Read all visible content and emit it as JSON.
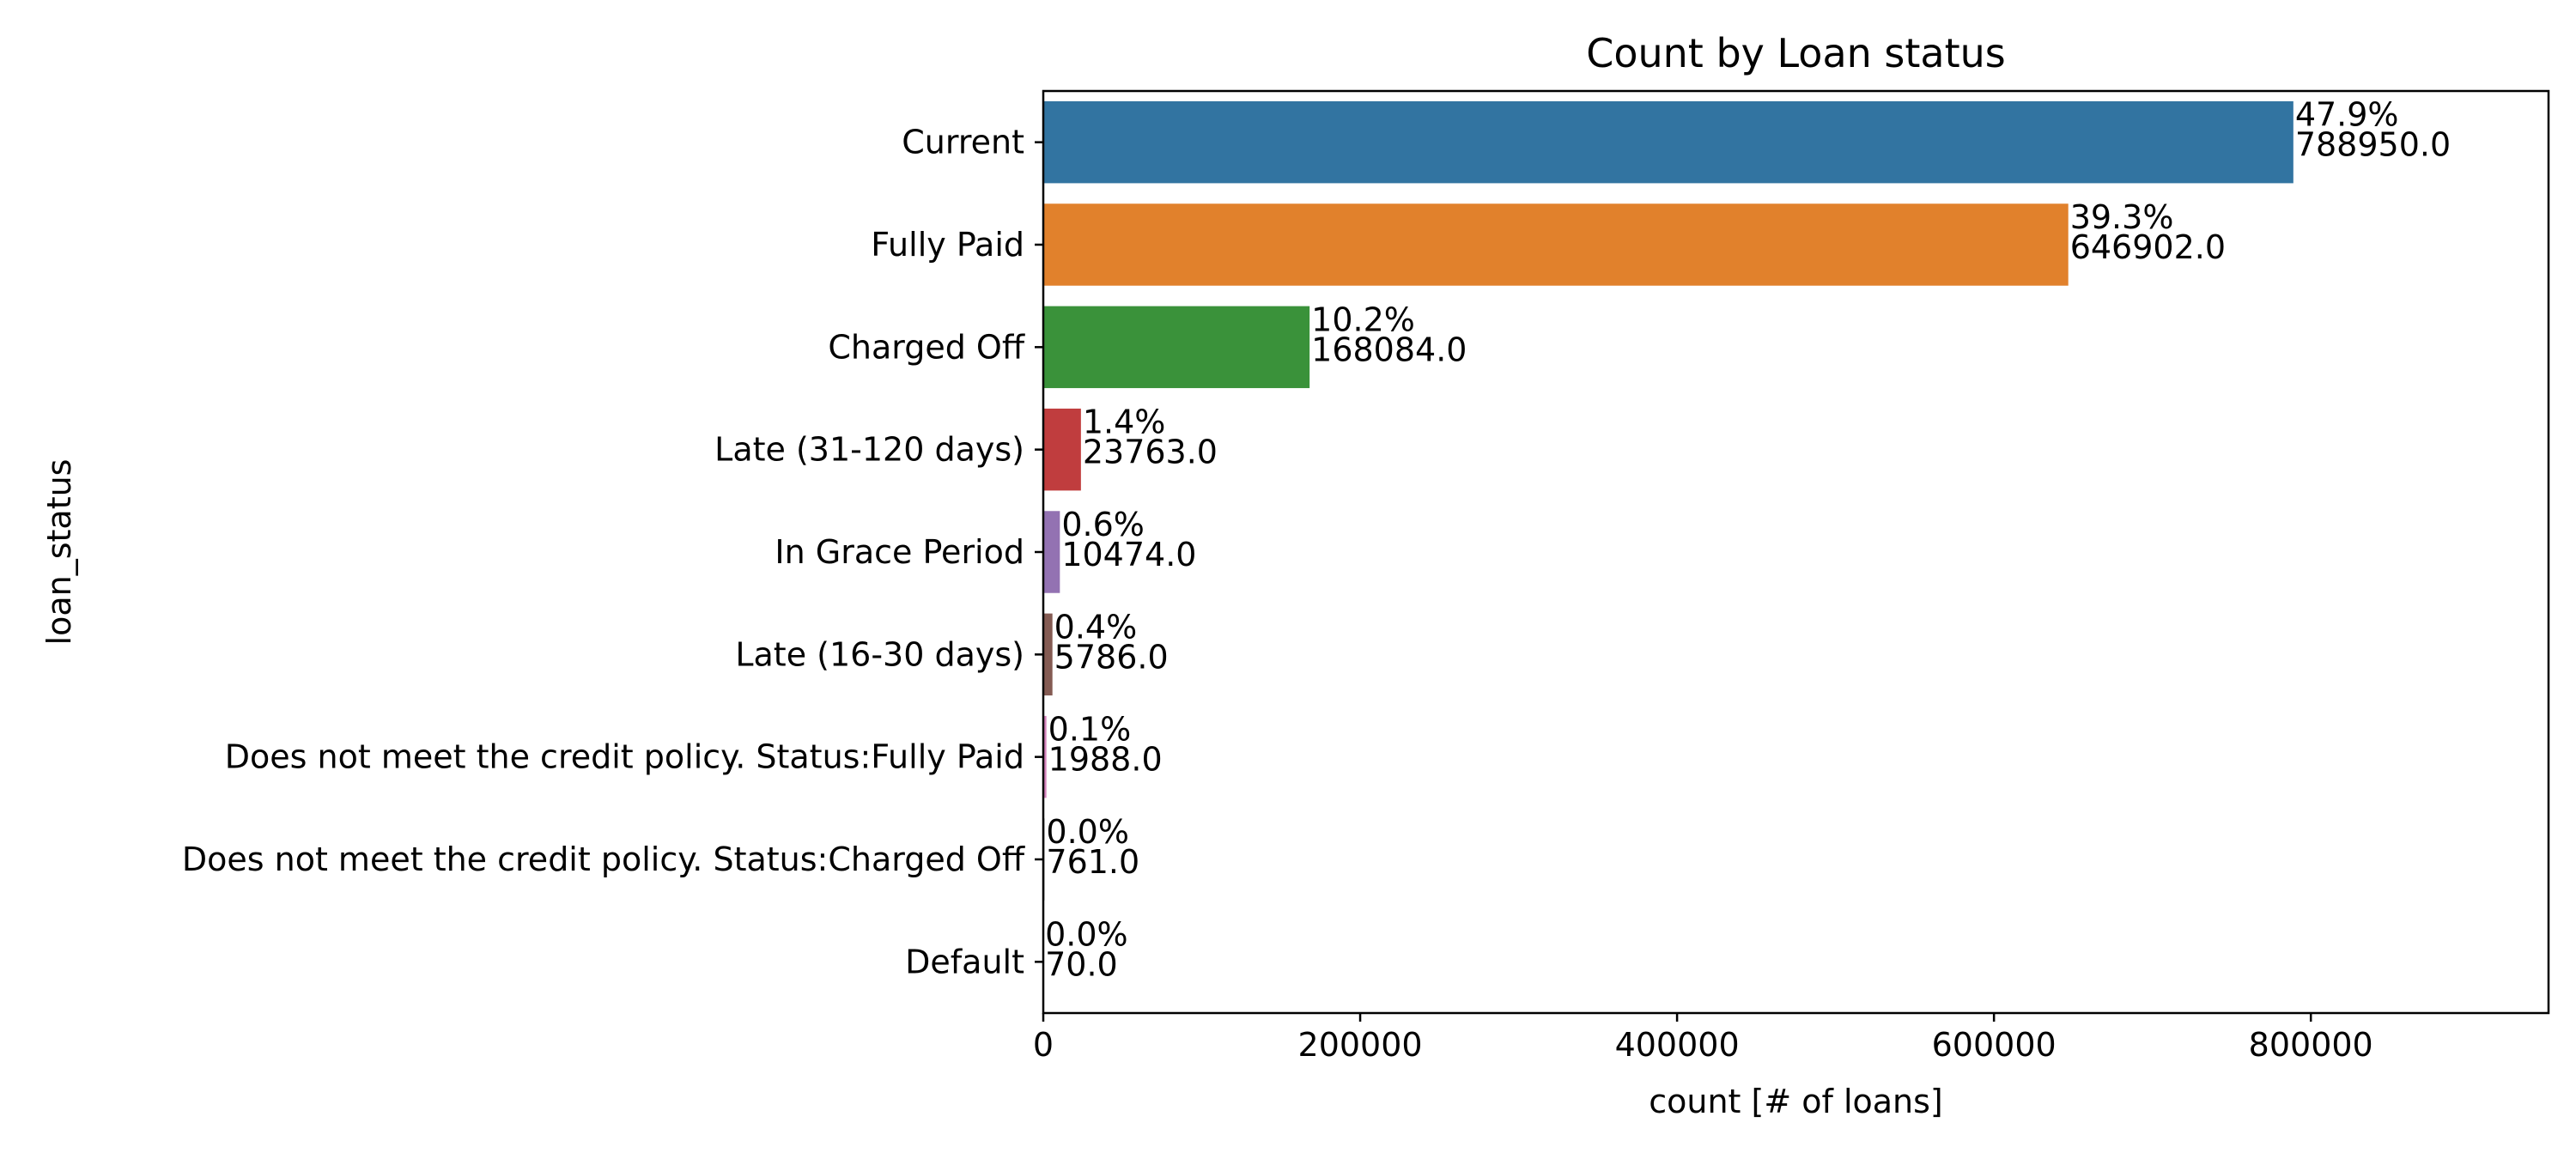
{
  "chart_data": {
    "type": "bar",
    "orientation": "horizontal",
    "title": "Count by Loan status",
    "xlabel": "count [# of loans]",
    "ylabel": "loan_status",
    "xlim": [
      0,
      950000
    ],
    "xticks": [
      0,
      200000,
      400000,
      600000,
      800000
    ],
    "xtick_labels": [
      "0",
      "200000",
      "400000",
      "600000",
      "800000"
    ],
    "grid": false,
    "legend": "none",
    "categories": [
      "Current",
      "Fully Paid",
      "Charged Off",
      "Late (31-120 days)",
      "In Grace Period",
      "Late (16-30 days)",
      "Does not meet the credit policy. Status:Fully Paid",
      "Does not meet the credit policy. Status:Charged Off",
      "Default"
    ],
    "values": [
      788950,
      646902,
      168084,
      23763,
      10474,
      5786,
      1988,
      761,
      70
    ],
    "percent_labels": [
      "47.9%",
      "39.3%",
      "10.2%",
      "1.4%",
      "0.6%",
      "0.4%",
      "0.1%",
      "0.0%",
      "0.0%"
    ],
    "count_labels": [
      "788950.0",
      "646902.0",
      "168084.0",
      "23763.0",
      "10474.0",
      "5786.0",
      "1988.0",
      "761.0",
      "70.0"
    ],
    "colors": [
      "#3274a1",
      "#e1812c",
      "#3a923a",
      "#c03d3e",
      "#9372b2",
      "#845b53",
      "#d684bd",
      "#7f7f7f",
      "#a9aa35"
    ]
  }
}
